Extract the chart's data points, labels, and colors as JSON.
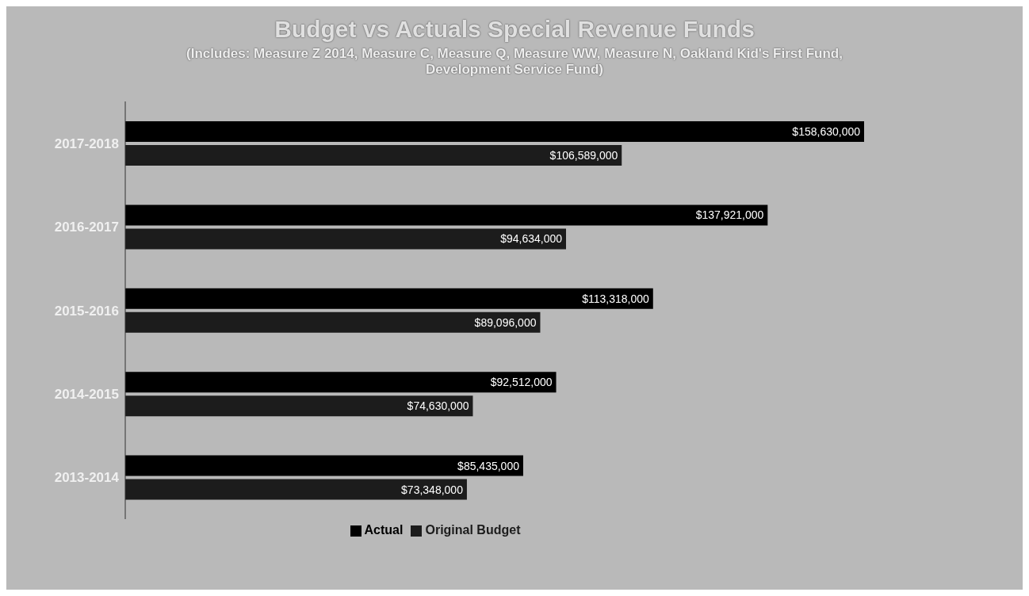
{
  "chart_data": {
    "type": "bar",
    "orientation": "horizontal",
    "title": "Budget vs Actuals Special Revenue Funds",
    "subtitle": "(Includes: Measure Z 2014, Measure C, Measure Q, Measure WW, Measure N, Oakland Kid's First Fund, Development Service Fund)",
    "categories": [
      "2017-2018",
      "2016-2017",
      "2015-2016",
      "2014-2015",
      "2013-2014"
    ],
    "series": [
      {
        "name": "Actual",
        "color": "#000000",
        "values": [
          158630000,
          137921000,
          113318000,
          92512000,
          85435000
        ],
        "value_labels": [
          "$158,630,000",
          "$137,921,000",
          "$113,318,000",
          "$92,512,000",
          "$85,435,000"
        ]
      },
      {
        "name": "Original Budget",
        "color": "#1c1c1c",
        "values": [
          106589000,
          94634000,
          89096000,
          74630000,
          73348000
        ],
        "value_labels": [
          "$106,589,000",
          "$94,634,000",
          "$89,096,000",
          "$74,630,000",
          "$73,348,000"
        ]
      }
    ],
    "tick_labels": "y",
    "legend": "bottom"
  }
}
